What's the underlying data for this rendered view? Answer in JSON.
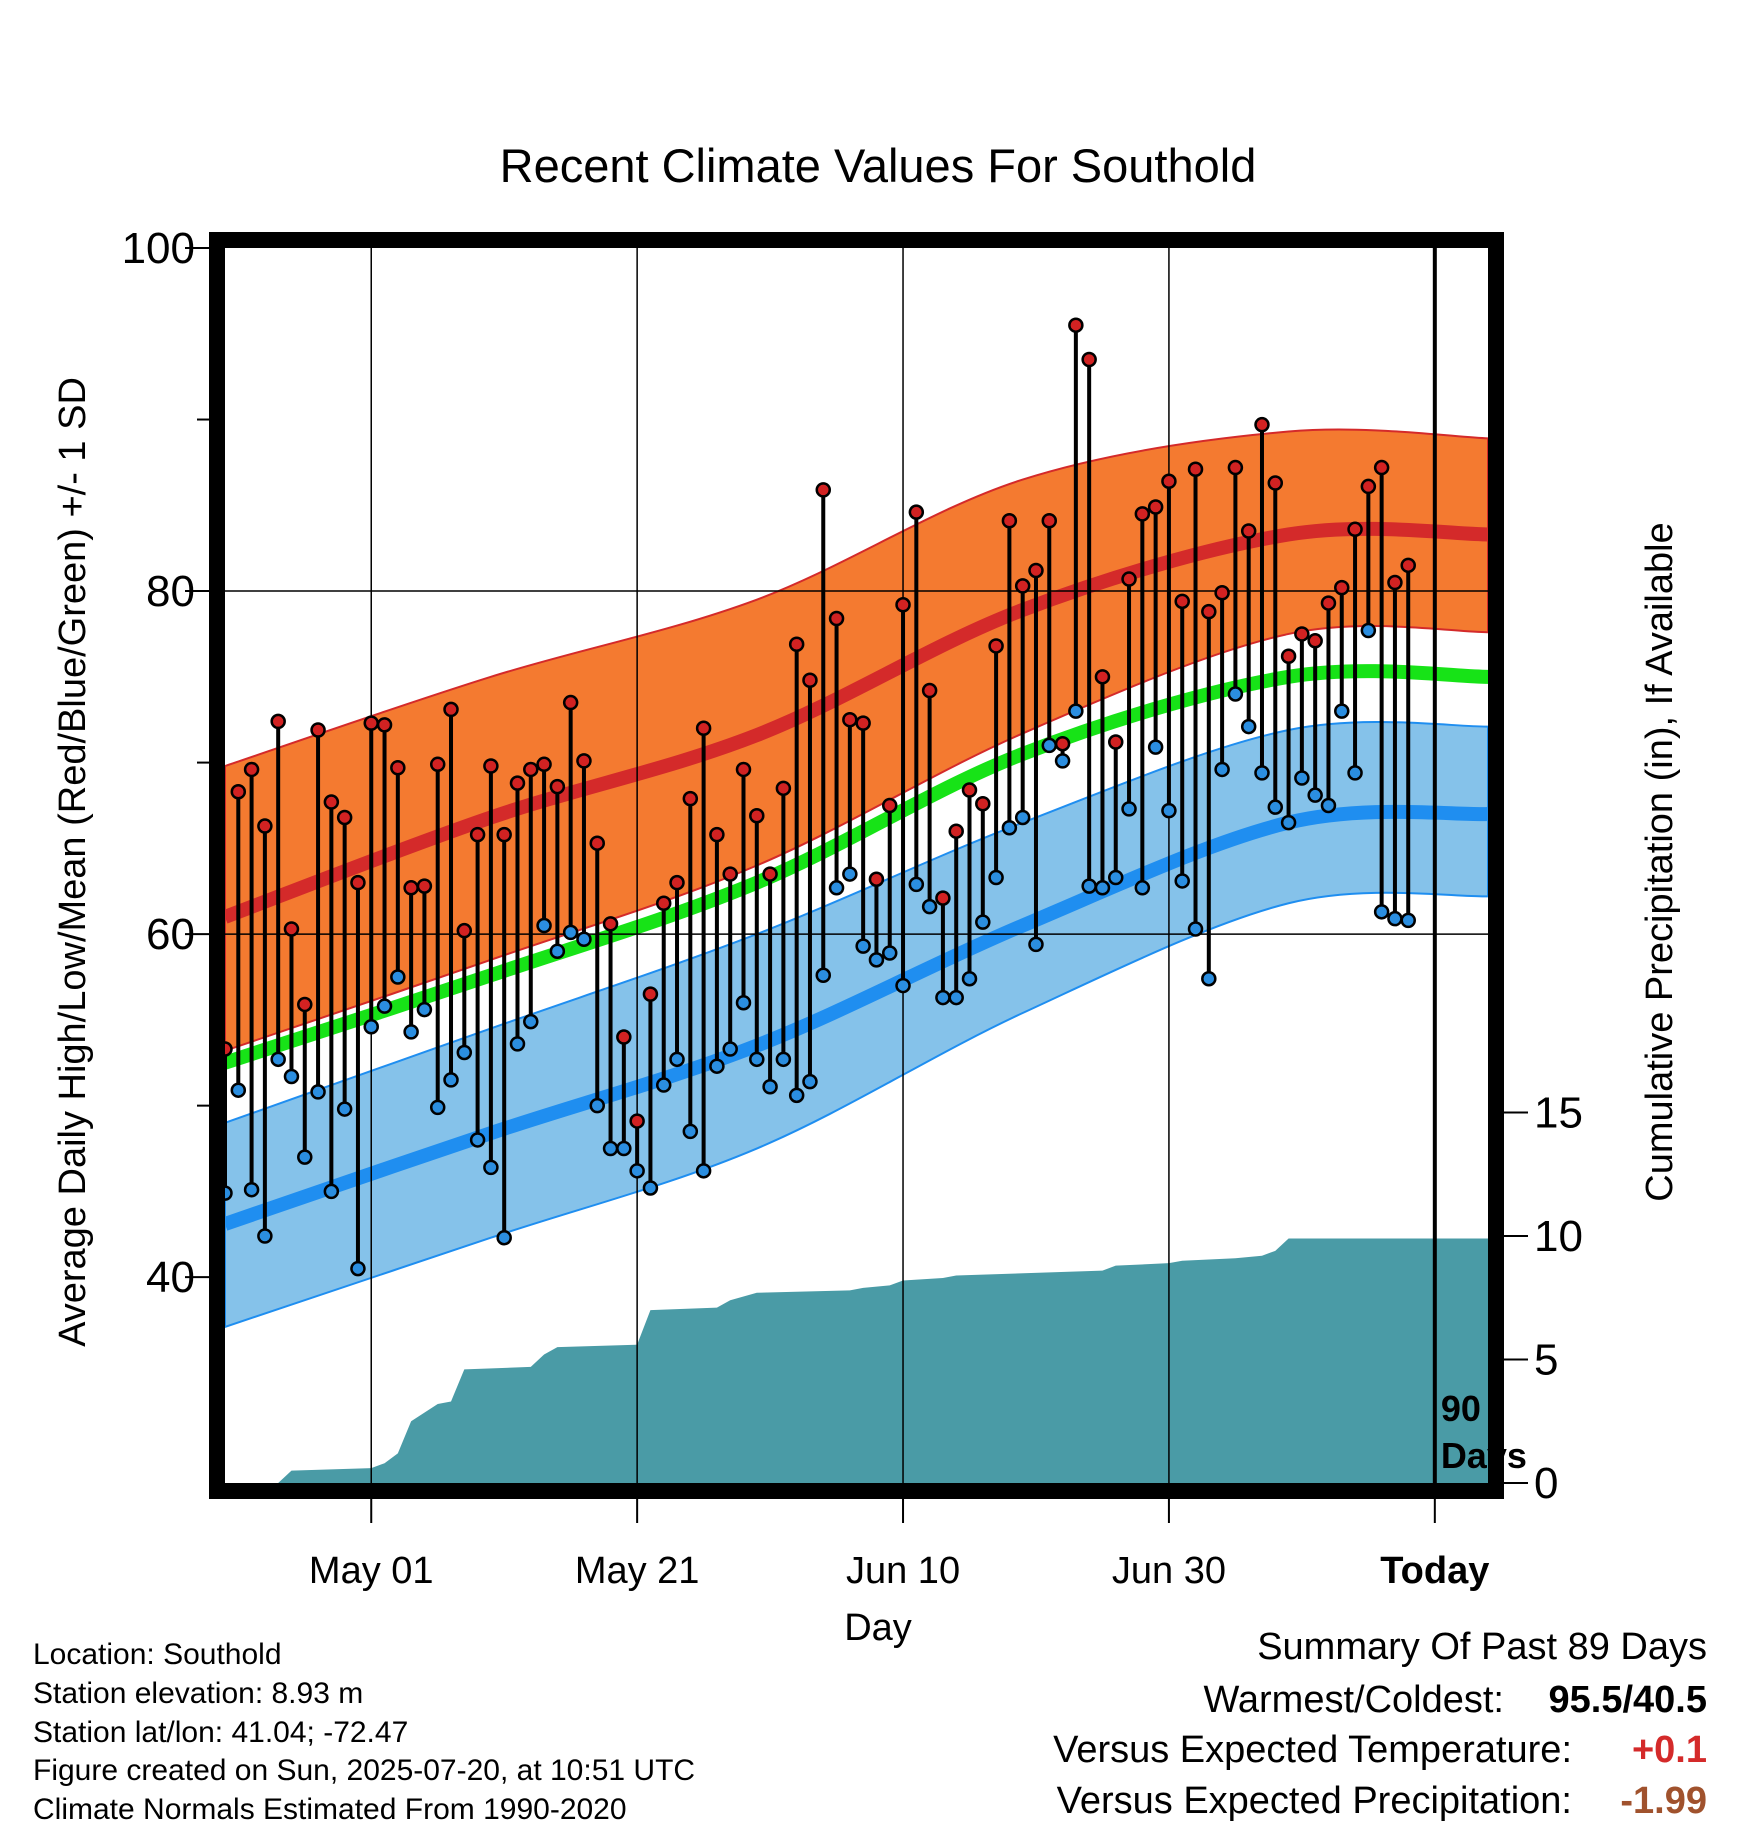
{
  "chart_data": {
    "type": "line",
    "title": "Recent Climate Values For Southold",
    "xlabel": "Day",
    "ylabel": "Average Daily High/Low/Mean (Red/Blue/Green) +/- 1 SD",
    "y2label": "Cumulative Precipitation (in), If Available",
    "xlim": [
      "2025-04-20",
      "2025-07-24"
    ],
    "ylim": [
      28,
      100
    ],
    "y2lim": [
      0,
      50
    ],
    "x_ticks": [
      {
        "date": "2025-05-01",
        "label": "May 01"
      },
      {
        "date": "2025-05-21",
        "label": "May 21"
      },
      {
        "date": "2025-06-10",
        "label": "Jun 10"
      },
      {
        "date": "2025-06-30",
        "label": "Jun 30"
      },
      {
        "date": "2025-07-20",
        "label": "Today"
      }
    ],
    "y_ticks": [
      40,
      60,
      80,
      100
    ],
    "y_minor_ticks": [
      50,
      70,
      90
    ],
    "y2_ticks": [
      0,
      5,
      10,
      15
    ],
    "grid": true,
    "today_marker": {
      "date": "2025-07-20",
      "label_line1": "90",
      "label_line2": "Days"
    },
    "colors": {
      "high_band": "#f47a30",
      "high_mean": "#d42a2a",
      "low_band": "#85c2ea",
      "low_mean": "#1f8ef0",
      "mean_normal": "#17e317",
      "precip": "#4a9ba6",
      "high_point": "#d22222",
      "low_point": "#2b8ee0"
    },
    "normals": {
      "x": [
        "2025-04-20",
        "2025-05-10",
        "2025-05-30",
        "2025-06-19",
        "2025-07-09",
        "2025-07-24"
      ],
      "high_mean": [
        61,
        66.8,
        71.6,
        78.9,
        83.3,
        83.3
      ],
      "high_upper": [
        69.8,
        75,
        79.5,
        86.5,
        89.3,
        88.9
      ],
      "high_lower": [
        53.2,
        58.5,
        64,
        71.7,
        77.5,
        77.6
      ],
      "low_mean": [
        43.1,
        48.4,
        53.5,
        60.5,
        66.5,
        67
      ],
      "low_upper": [
        49,
        54.5,
        60,
        66.5,
        71.9,
        72.1
      ],
      "low_lower": [
        37.1,
        42.3,
        47.5,
        55.4,
        61.8,
        62.2
      ],
      "mean": [
        52.5,
        57.6,
        63,
        70.5,
        75,
        75
      ]
    },
    "series": [
      {
        "name": "High",
        "x": [
          "2025-04-20",
          "2025-04-21",
          "2025-04-22",
          "2025-04-23",
          "2025-04-24",
          "2025-04-25",
          "2025-04-26",
          "2025-04-27",
          "2025-04-28",
          "2025-04-29",
          "2025-04-30",
          "2025-05-01",
          "2025-05-02",
          "2025-05-03",
          "2025-05-04",
          "2025-05-05",
          "2025-05-06",
          "2025-05-07",
          "2025-05-08",
          "2025-05-09",
          "2025-05-10",
          "2025-05-11",
          "2025-05-12",
          "2025-05-13",
          "2025-05-14",
          "2025-05-15",
          "2025-05-16",
          "2025-05-17",
          "2025-05-18",
          "2025-05-19",
          "2025-05-20",
          "2025-05-21",
          "2025-05-22",
          "2025-05-23",
          "2025-05-24",
          "2025-05-25",
          "2025-05-26",
          "2025-05-27",
          "2025-05-28",
          "2025-05-29",
          "2025-05-30",
          "2025-05-31",
          "2025-06-01",
          "2025-06-02",
          "2025-06-03",
          "2025-06-04",
          "2025-06-05",
          "2025-06-06",
          "2025-06-07",
          "2025-06-08",
          "2025-06-09",
          "2025-06-10",
          "2025-06-11",
          "2025-06-12",
          "2025-06-13",
          "2025-06-14",
          "2025-06-15",
          "2025-06-16",
          "2025-06-17",
          "2025-06-18",
          "2025-06-19",
          "2025-06-20",
          "2025-06-21",
          "2025-06-22",
          "2025-06-23",
          "2025-06-24",
          "2025-06-25",
          "2025-06-26",
          "2025-06-27",
          "2025-06-28",
          "2025-06-29",
          "2025-06-30",
          "2025-07-01",
          "2025-07-02",
          "2025-07-03",
          "2025-07-04",
          "2025-07-05",
          "2025-07-06",
          "2025-07-07",
          "2025-07-08",
          "2025-07-09",
          "2025-07-10",
          "2025-07-11",
          "2025-07-12",
          "2025-07-13",
          "2025-07-14",
          "2025-07-15",
          "2025-07-16",
          "2025-07-17",
          "2025-07-18"
        ],
        "values": [
          53.3,
          68.3,
          69.6,
          66.3,
          72.4,
          60.3,
          55.9,
          71.9,
          67.7,
          66.8,
          63.0,
          72.3,
          72.2,
          69.7,
          62.7,
          62.8,
          69.9,
          73.1,
          60.2,
          65.8,
          69.8,
          65.8,
          68.8,
          69.6,
          69.9,
          68.6,
          73.5,
          70.1,
          65.3,
          60.6,
          54.0,
          49.1,
          56.5,
          61.8,
          63.0,
          67.9,
          72.0,
          65.8,
          63.5,
          69.6,
          66.9,
          63.5,
          68.5,
          76.9,
          74.8,
          85.9,
          78.4,
          72.5,
          72.3,
          63.2,
          67.5,
          79.2,
          84.6,
          74.2,
          62.1,
          66.0,
          68.4,
          67.6,
          76.8,
          84.1,
          80.3,
          81.2,
          84.1,
          71.1,
          95.5,
          93.5,
          75.0,
          71.2,
          80.7,
          84.5,
          84.9,
          86.4,
          79.4,
          87.1,
          78.8,
          79.9,
          87.2,
          83.5,
          89.7,
          86.3,
          76.2,
          77.5,
          77.1,
          79.3,
          80.2,
          83.6,
          86.1,
          87.2,
          80.5,
          81.5
        ]
      },
      {
        "name": "Low",
        "x": [
          "2025-04-20",
          "2025-04-21",
          "2025-04-22",
          "2025-04-23",
          "2025-04-24",
          "2025-04-25",
          "2025-04-26",
          "2025-04-27",
          "2025-04-28",
          "2025-04-29",
          "2025-04-30",
          "2025-05-01",
          "2025-05-02",
          "2025-05-03",
          "2025-05-04",
          "2025-05-05",
          "2025-05-06",
          "2025-05-07",
          "2025-05-08",
          "2025-05-09",
          "2025-05-10",
          "2025-05-11",
          "2025-05-12",
          "2025-05-13",
          "2025-05-14",
          "2025-05-15",
          "2025-05-16",
          "2025-05-17",
          "2025-05-18",
          "2025-05-19",
          "2025-05-20",
          "2025-05-21",
          "2025-05-22",
          "2025-05-23",
          "2025-05-24",
          "2025-05-25",
          "2025-05-26",
          "2025-05-27",
          "2025-05-28",
          "2025-05-29",
          "2025-05-30",
          "2025-05-31",
          "2025-06-01",
          "2025-06-02",
          "2025-06-03",
          "2025-06-04",
          "2025-06-05",
          "2025-06-06",
          "2025-06-07",
          "2025-06-08",
          "2025-06-09",
          "2025-06-10",
          "2025-06-11",
          "2025-06-12",
          "2025-06-13",
          "2025-06-14",
          "2025-06-15",
          "2025-06-16",
          "2025-06-17",
          "2025-06-18",
          "2025-06-19",
          "2025-06-20",
          "2025-06-21",
          "2025-06-22",
          "2025-06-23",
          "2025-06-24",
          "2025-06-25",
          "2025-06-26",
          "2025-06-27",
          "2025-06-28",
          "2025-06-29",
          "2025-06-30",
          "2025-07-01",
          "2025-07-02",
          "2025-07-03",
          "2025-07-04",
          "2025-07-05",
          "2025-07-06",
          "2025-07-07",
          "2025-07-08",
          "2025-07-09",
          "2025-07-10",
          "2025-07-11",
          "2025-07-12",
          "2025-07-13",
          "2025-07-14",
          "2025-07-15",
          "2025-07-16",
          "2025-07-17",
          "2025-07-18"
        ],
        "values": [
          44.9,
          50.9,
          45.1,
          42.4,
          52.7,
          51.7,
          47.0,
          50.8,
          45.0,
          49.8,
          40.5,
          54.6,
          55.8,
          57.5,
          54.3,
          55.6,
          49.9,
          51.5,
          53.1,
          48.0,
          46.4,
          42.3,
          53.6,
          54.9,
          60.5,
          59.0,
          60.1,
          59.7,
          50.0,
          47.5,
          47.5,
          46.2,
          45.2,
          51.2,
          52.7,
          48.5,
          46.2,
          52.3,
          53.3,
          56.0,
          52.7,
          51.1,
          52.7,
          50.6,
          51.4,
          57.6,
          62.7,
          63.5,
          59.3,
          58.5,
          58.9,
          57.0,
          62.9,
          61.6,
          56.3,
          56.3,
          57.4,
          60.7,
          63.3,
          66.2,
          66.8,
          59.4,
          71.0,
          70.1,
          73.0,
          62.8,
          62.7,
          63.3,
          67.3,
          62.7,
          70.9,
          67.2,
          63.1,
          60.3,
          57.4,
          69.6,
          74.0,
          72.1,
          69.4,
          67.4,
          66.5,
          69.1,
          68.1,
          67.5,
          73.0,
          69.4,
          77.7,
          61.3,
          60.9,
          60.8
        ]
      }
    ],
    "precipitation": {
      "x": [
        "2025-04-20",
        "2025-04-24",
        "2025-04-25",
        "2025-05-01",
        "2025-05-02",
        "2025-05-03",
        "2025-05-04",
        "2025-05-06",
        "2025-05-07",
        "2025-05-08",
        "2025-05-13",
        "2025-05-14",
        "2025-05-15",
        "2025-05-21",
        "2025-05-22",
        "2025-05-27",
        "2025-05-28",
        "2025-05-30",
        "2025-06-06",
        "2025-06-07",
        "2025-06-09",
        "2025-06-10",
        "2025-06-13",
        "2025-06-14",
        "2025-06-25",
        "2025-06-26",
        "2025-06-30",
        "2025-07-01",
        "2025-07-05",
        "2025-07-07",
        "2025-07-08",
        "2025-07-09",
        "2025-07-24"
      ],
      "values": [
        0,
        0,
        0.5,
        0.6,
        0.8,
        1.2,
        2.5,
        3.2,
        3.3,
        4.6,
        4.7,
        5.2,
        5.5,
        5.6,
        7.0,
        7.1,
        7.4,
        7.7,
        7.8,
        7.9,
        8.0,
        8.2,
        8.3,
        8.4,
        8.6,
        8.8,
        8.9,
        9.0,
        9.1,
        9.2,
        9.4,
        9.9,
        9.9
      ]
    }
  },
  "info": {
    "location": "Location: Southold",
    "elevation": "Station elevation: 8.93 m",
    "latlon": "Station lat/lon: 41.04; -72.47",
    "created": "Figure created on Sun, 2025-07-20, at 10:51 UTC",
    "normals": "Climate Normals Estimated From 1990-2020"
  },
  "summary": {
    "title": "Summary Of Past 89 Days",
    "warmest_coldest_label": "Warmest/Coldest:",
    "warmest_coldest_value": "95.5/40.5",
    "temp_label": "Versus Expected Temperature:",
    "temp_value": "+0.1",
    "temp_color": "#d42a2a",
    "precip_label": "Versus Expected Precipitation:",
    "precip_value": "-1.99",
    "precip_color": "#a0522d"
  }
}
